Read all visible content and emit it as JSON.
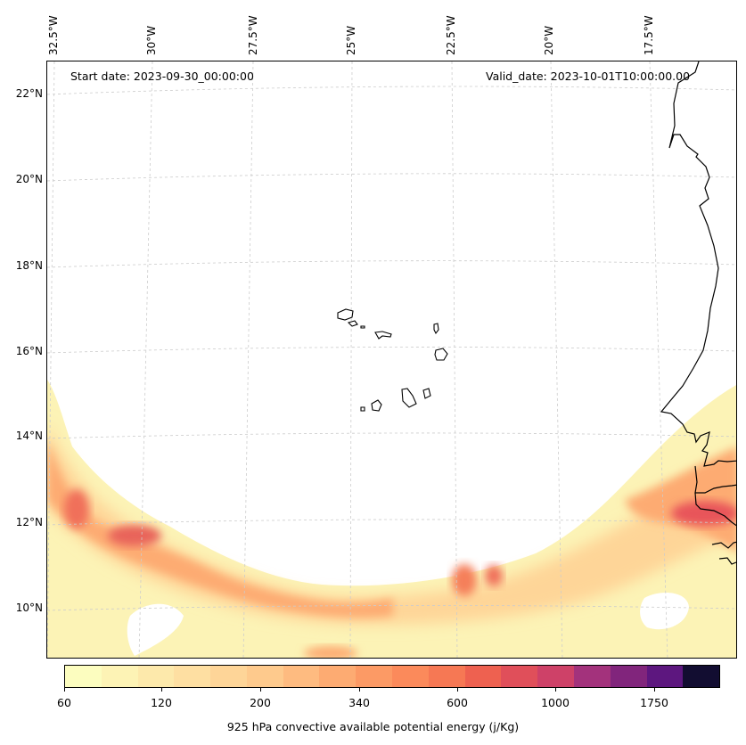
{
  "map": {
    "start_date": "Start date: 2023-09-30_00:00:00",
    "valid_date": "Valid_date: 2023-10-01T10:00:00.00",
    "lon_labels": [
      "32.5°W",
      "30°W",
      "27.5°W",
      "25°W",
      "22.5°W",
      "20°W",
      "17.5°W"
    ],
    "lat_labels": [
      "22°N",
      "20°N",
      "18°N",
      "16°N",
      "14°N",
      "12°N",
      "10°N"
    ],
    "field": "925 hPa convective available potential energy",
    "region": "Cabo Verde islands and West African coast"
  },
  "colorbar": {
    "title": "925 hPa convective available potential energy (j/Kg)",
    "tick_labels": [
      "60",
      "120",
      "200",
      "340",
      "600",
      "1000",
      "1750"
    ],
    "colors": [
      "#fcfdbf",
      "#fdf3b5",
      "#fde9ab",
      "#fedfa2",
      "#fed598",
      "#feca8d",
      "#febb80",
      "#fdab72",
      "#fc9a65",
      "#fb8a5b",
      "#f67854",
      "#ee6150",
      "#e04f5a",
      "#ce4168",
      "#a3327c",
      "#81257c",
      "#5d177f",
      "#120d31"
    ]
  },
  "colors": {
    "low": "#fcfdbf",
    "mid": "#fdab72",
    "high": "#e04f5a",
    "coast": "#000000",
    "grid": "#cccccc"
  }
}
